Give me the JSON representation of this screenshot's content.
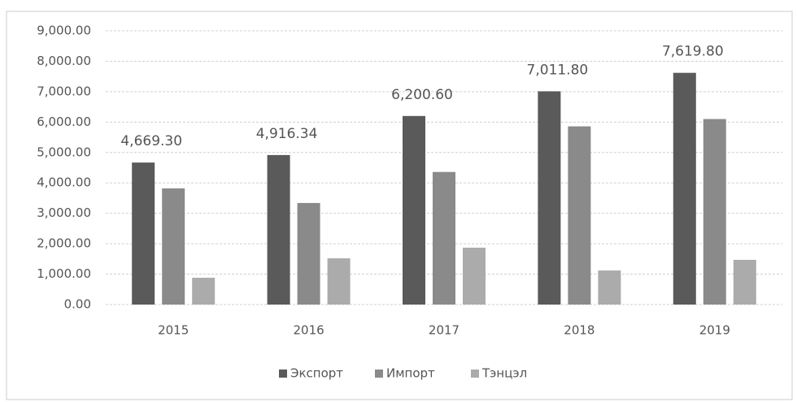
{
  "chart_data": {
    "type": "bar",
    "categories": [
      "2015",
      "2016",
      "2017",
      "2018",
      "2019"
    ],
    "series": [
      {
        "name": "Экспорт",
        "color": "#5a5a5a",
        "values": [
          4669.3,
          4916.34,
          6200.6,
          7011.8,
          7619.8
        ],
        "value_labels": [
          "4,669.30",
          "4,916.34",
          "6,200.60",
          "7,011.80",
          "7,619.80"
        ]
      },
      {
        "name": "Импорт",
        "color": "#8a8a8a",
        "values": [
          3820,
          3340,
          4360,
          5860,
          6100
        ]
      },
      {
        "name": "Тэнцэл",
        "color": "#ababab",
        "values": [
          880,
          1520,
          1870,
          1120,
          1470
        ]
      }
    ],
    "ylim": [
      0,
      9000
    ],
    "yticks": [
      {
        "value": 0,
        "label": "0.00"
      },
      {
        "value": 1000,
        "label": "1,000.00"
      },
      {
        "value": 2000,
        "label": "2,000.00"
      },
      {
        "value": 3000,
        "label": "3,000.00"
      },
      {
        "value": 4000,
        "label": "4,000.00"
      },
      {
        "value": 5000,
        "label": "5,000.00"
      },
      {
        "value": 6000,
        "label": "6,000.00"
      },
      {
        "value": 7000,
        "label": "7,000.00"
      },
      {
        "value": 8000,
        "label": "8,000.00"
      },
      {
        "value": 9000,
        "label": "9,000.00"
      }
    ],
    "grid": true,
    "legend": "bottom"
  }
}
